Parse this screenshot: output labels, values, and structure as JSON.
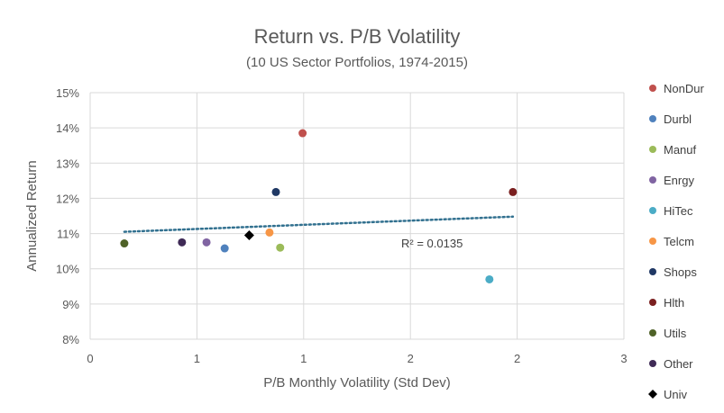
{
  "chart_data": {
    "type": "scatter",
    "title": "Return vs. P/B Volatility",
    "subtitle": "(10 US Sector Portfolios, 1974-2015)",
    "xlabel": "P/B Monthly Volatility (Std Dev)",
    "ylabel": "Annualized Return",
    "xlim": [
      0,
      2.5
    ],
    "ylim": [
      0.08,
      0.15
    ],
    "x_tick_labels": [
      "0",
      "1",
      "1",
      "2",
      "2",
      "3"
    ],
    "y_tick_labels": [
      "8%",
      "9%",
      "10%",
      "11%",
      "12%",
      "13%",
      "14%",
      "15%"
    ],
    "grid": true,
    "legend_position": "right",
    "series": [
      {
        "name": "NonDur",
        "x": 0.995,
        "y": 0.1385,
        "color": "#c0504d",
        "marker": "circle"
      },
      {
        "name": "Durbl",
        "x": 0.63,
        "y": 0.1058,
        "color": "#4f81bd",
        "marker": "circle"
      },
      {
        "name": "Manuf",
        "x": 0.89,
        "y": 0.106,
        "color": "#9bbb59",
        "marker": "circle"
      },
      {
        "name": "Enrgy",
        "x": 0.545,
        "y": 0.1075,
        "color": "#8064a2",
        "marker": "circle"
      },
      {
        "name": "HiTec",
        "x": 1.87,
        "y": 0.097,
        "color": "#4bacc6",
        "marker": "circle"
      },
      {
        "name": "Telcm",
        "x": 0.84,
        "y": 0.1103,
        "color": "#f79646",
        "marker": "circle"
      },
      {
        "name": "Shops",
        "x": 0.87,
        "y": 0.1218,
        "color": "#1f3864",
        "marker": "circle"
      },
      {
        "name": "Hlth",
        "x": 1.98,
        "y": 0.1218,
        "color": "#7b2020",
        "marker": "circle"
      },
      {
        "name": "Utils",
        "x": 0.16,
        "y": 0.1072,
        "color": "#4f6228",
        "marker": "circle"
      },
      {
        "name": "Other",
        "x": 0.43,
        "y": 0.1075,
        "color": "#3f2a56",
        "marker": "circle"
      },
      {
        "name": "Univ",
        "x": 0.745,
        "y": 0.1095,
        "color": "#000000",
        "marker": "diamond"
      }
    ],
    "trendline": {
      "x": [
        0.16,
        1.98
      ],
      "y": [
        0.1105,
        0.1148
      ],
      "color": "#31708f",
      "style": "dotted"
    },
    "annotation": "R² = 0.0135"
  }
}
